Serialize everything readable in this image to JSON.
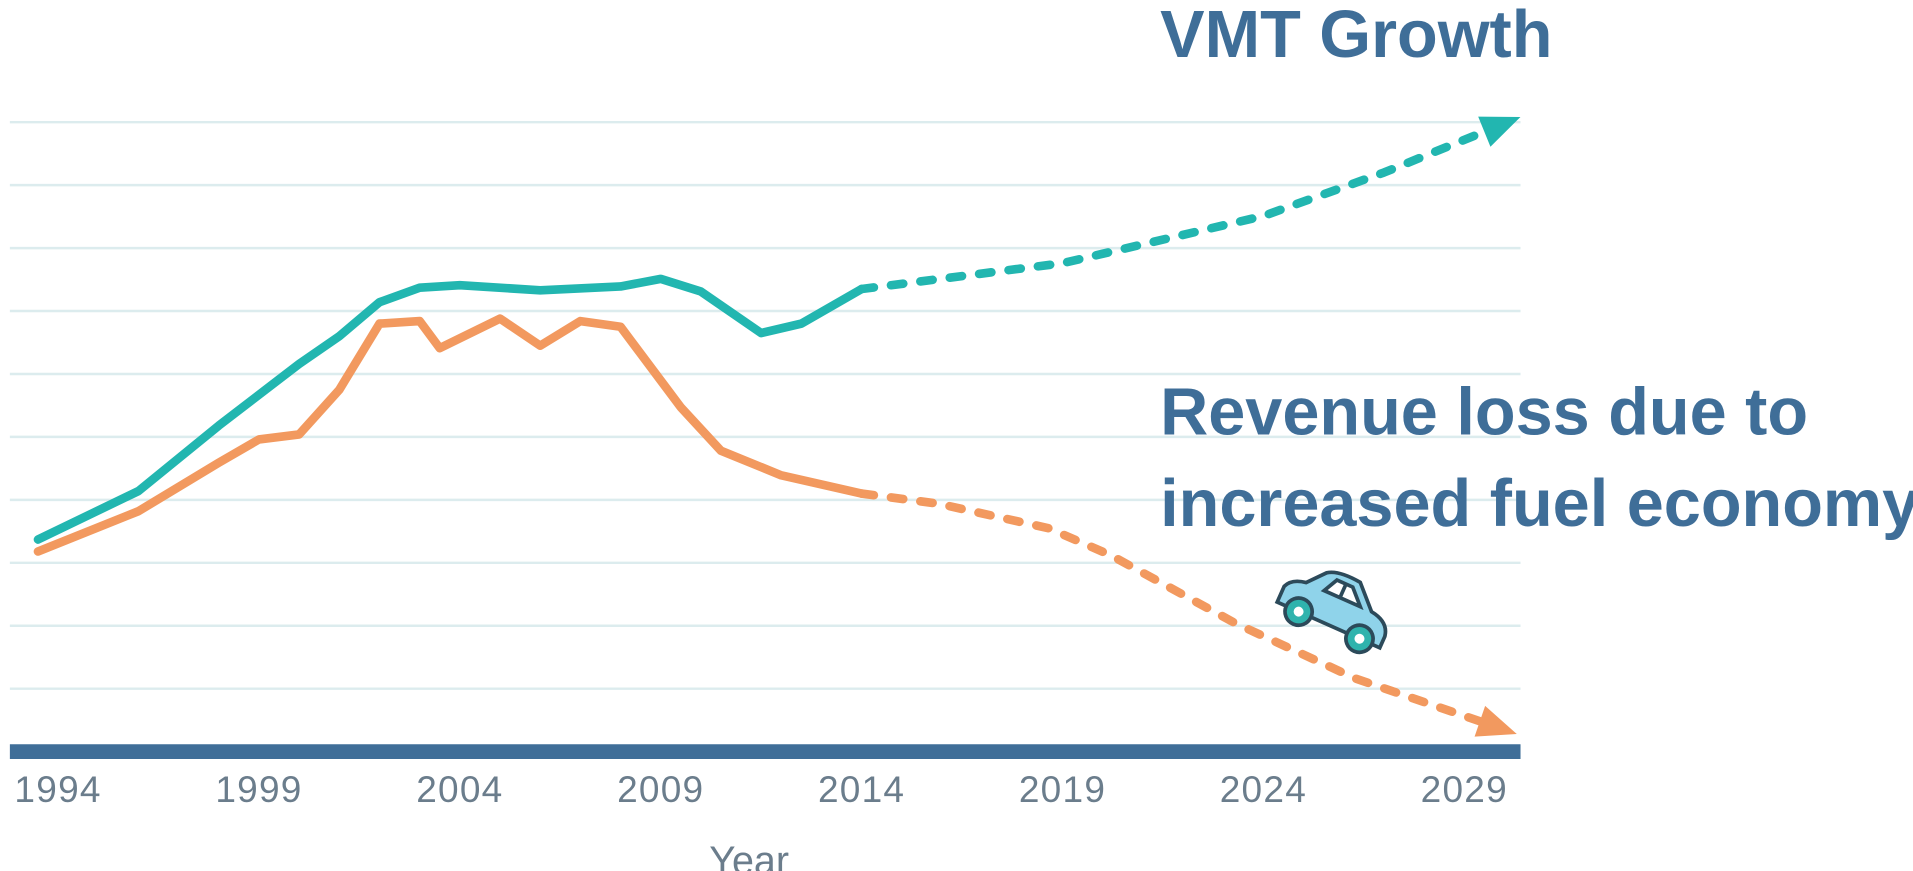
{
  "chart_data": {
    "type": "line",
    "x_label": "Year",
    "xlim": [
      1992.8,
      2030.4
    ],
    "xticks": [
      1994,
      1999,
      2004,
      2009,
      2014,
      2019,
      2024,
      2029
    ],
    "ylim": [
      0,
      10
    ],
    "yticks": [
      1,
      2,
      3,
      4,
      5,
      6,
      7,
      8,
      9,
      10
    ],
    "grid": true,
    "projection_start": 2014,
    "series": [
      {
        "name": "VMT Growth",
        "color": "#22b6b0",
        "x": [
          1993.5,
          1996,
          1998,
          2000,
          2001,
          2002,
          2003,
          2004,
          2006,
          2008,
          2009,
          2010,
          2011.5,
          2012.5,
          2014,
          2019,
          2024,
          2027,
          2030
        ],
        "values": [
          3.37,
          4.14,
          5.18,
          6.16,
          6.6,
          7.14,
          7.37,
          7.41,
          7.33,
          7.39,
          7.51,
          7.31,
          6.65,
          6.8,
          7.35,
          7.76,
          8.51,
          9.2,
          9.98
        ]
      },
      {
        "name": [
          "Revenue loss due to",
          "increased fuel economy"
        ],
        "color": "#f2995f",
        "x": [
          1993.5,
          1996,
          1998,
          1999,
          2000,
          2001,
          2002,
          2003,
          2003.5,
          2005,
          2006,
          2007,
          2008,
          2009.5,
          2010.5,
          2012,
          2014,
          2015.9,
          2018.65,
          2020.2,
          2023.3,
          2026.3,
          2029.9
        ],
        "values": [
          3.18,
          3.82,
          4.59,
          4.96,
          5.04,
          5.75,
          6.8,
          6.84,
          6.41,
          6.88,
          6.45,
          6.84,
          6.75,
          5.47,
          4.78,
          4.39,
          4.1,
          3.94,
          3.55,
          3.12,
          2.04,
          1.16,
          0.37
        ]
      }
    ]
  }
}
